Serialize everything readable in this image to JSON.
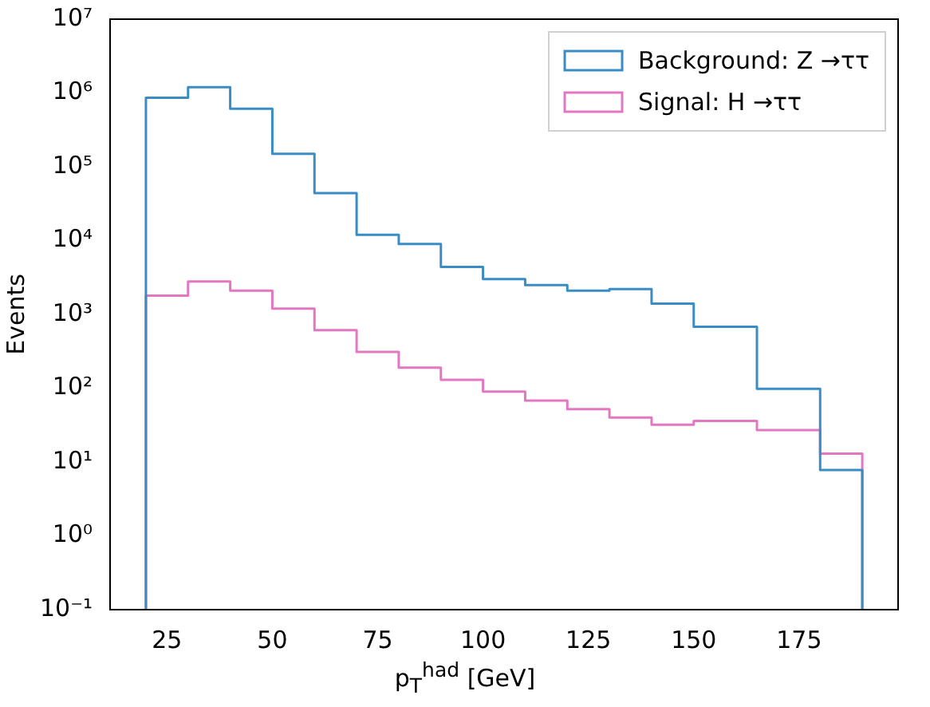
{
  "chart_data": {
    "type": "histogram",
    "xlabel": "p$_{T}$$^{had}$ [GeV]",
    "ylabel": "Events",
    "log": "y",
    "grid": false,
    "legend": "top right",
    "bins": [
      20,
      30,
      40,
      50,
      60,
      70,
      80,
      90,
      100,
      110,
      120,
      130,
      140,
      150,
      165,
      180,
      190
    ],
    "series": [
      {
        "name": "Background: Z →ττ",
        "color": "#3a8cc4",
        "values": [
          860000,
          1200000,
          610000,
          150000,
          44000,
          12000,
          9000,
          4400,
          3000,
          2500,
          2100,
          2200,
          1400,
          680,
          98,
          7.8
        ]
      },
      {
        "name": "Signal: H →ττ",
        "color": "#e377c2",
        "values": [
          1800,
          2800,
          2100,
          1200,
          610,
          310,
          190,
          130,
          90,
          68,
          52,
          40,
          32,
          36,
          27,
          13
        ]
      }
    ],
    "xlim": [
      11.5,
      198.5
    ],
    "xticks": [
      25,
      50,
      75,
      100,
      125,
      150,
      175
    ],
    "ylim": [
      0.1,
      10000000
    ],
    "yticks": [
      {
        "value": 0.1,
        "label": "10⁻¹"
      },
      {
        "value": 1,
        "label": "10⁰"
      },
      {
        "value": 10,
        "label": "10¹"
      },
      {
        "value": 100,
        "label": "10²"
      },
      {
        "value": 1000,
        "label": "10³"
      },
      {
        "value": 10000,
        "label": "10⁴"
      },
      {
        "value": 100000,
        "label": "10⁵"
      },
      {
        "value": 1000000,
        "label": "10⁶"
      },
      {
        "value": 10000000,
        "label": "10⁷"
      }
    ]
  }
}
